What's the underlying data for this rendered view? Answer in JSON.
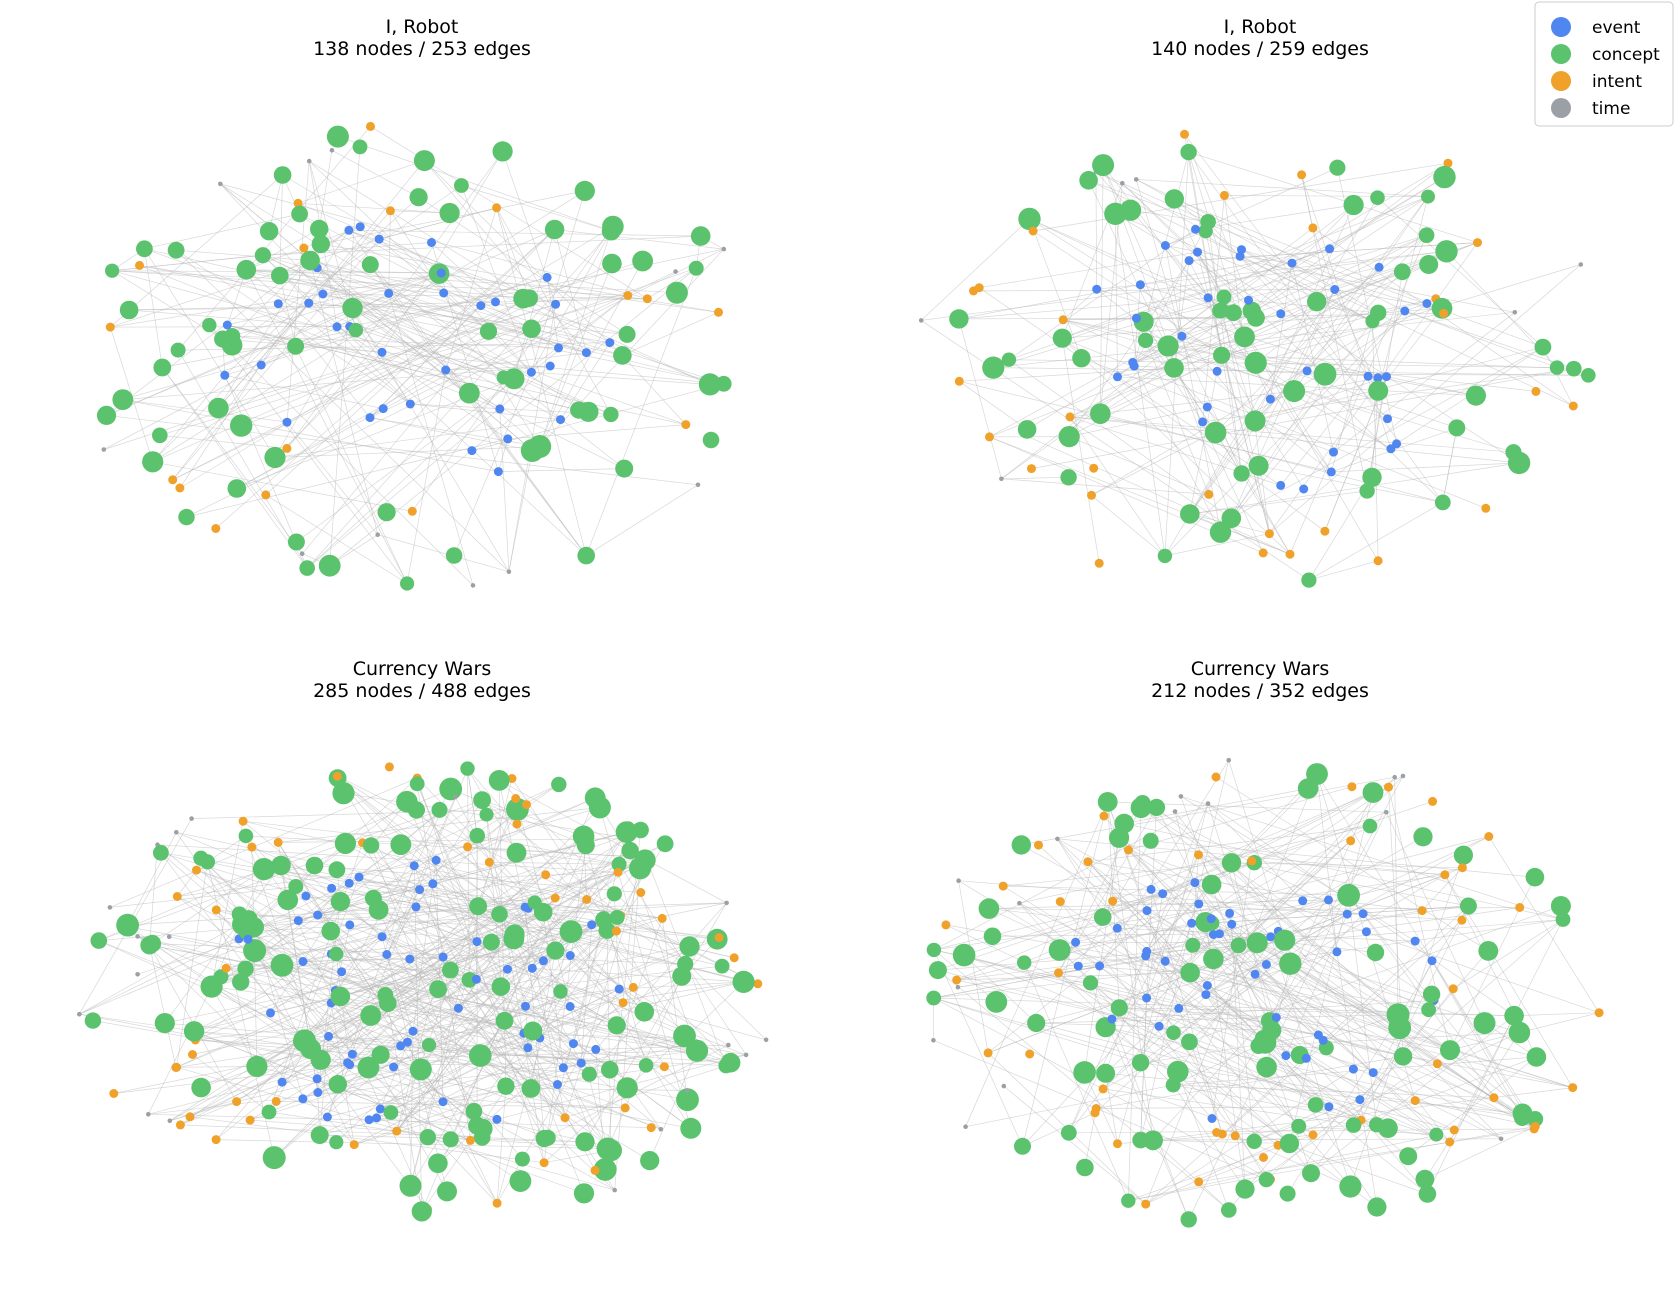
{
  "legend": {
    "items": [
      {
        "label": "event",
        "color": "#4f86f0"
      },
      {
        "label": "concept",
        "color": "#5bc26e"
      },
      {
        "label": "intent",
        "color": "#f0a12a"
      },
      {
        "label": "time",
        "color": "#9aa0a6"
      }
    ]
  },
  "edge_color": "#b8b8b8",
  "panels": [
    {
      "title": "I, Robot",
      "subtitle": "138 nodes / 253 edges",
      "nodes": 138,
      "edges": 253
    },
    {
      "title": "I, Robot",
      "subtitle": "140 nodes / 259 edges",
      "nodes": 140,
      "edges": 259
    },
    {
      "title": "Currency Wars",
      "subtitle": "285 nodes / 488 edges",
      "nodes": 285,
      "edges": 488
    },
    {
      "title": "Currency Wars",
      "subtitle": "212 nodes / 352 edges",
      "nodes": 212,
      "edges": 352
    }
  ]
}
